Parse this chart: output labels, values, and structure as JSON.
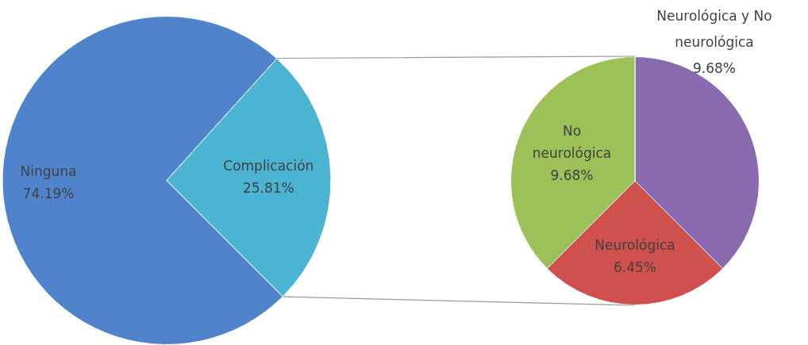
{
  "chart_data": [
    {
      "type": "pie",
      "categories": [
        "Ninguna",
        "Complicación"
      ],
      "values": [
        74.19,
        25.81
      ],
      "colors": [
        "#4f84cc",
        "#4bb4d2"
      ],
      "value_labels": [
        "74.19%",
        "25.81%"
      ],
      "legend": false
    },
    {
      "type": "pie",
      "categories": [
        "Neurológica y No neurológica",
        "Neurológica",
        "No neurológica"
      ],
      "values": [
        9.68,
        6.45,
        9.68
      ],
      "colors": [
        "#8a6bb0",
        "#d0504d",
        "#9cc158"
      ],
      "value_labels": [
        "9.68%",
        "6.45%",
        "9.68%"
      ],
      "legend": false
    }
  ]
}
